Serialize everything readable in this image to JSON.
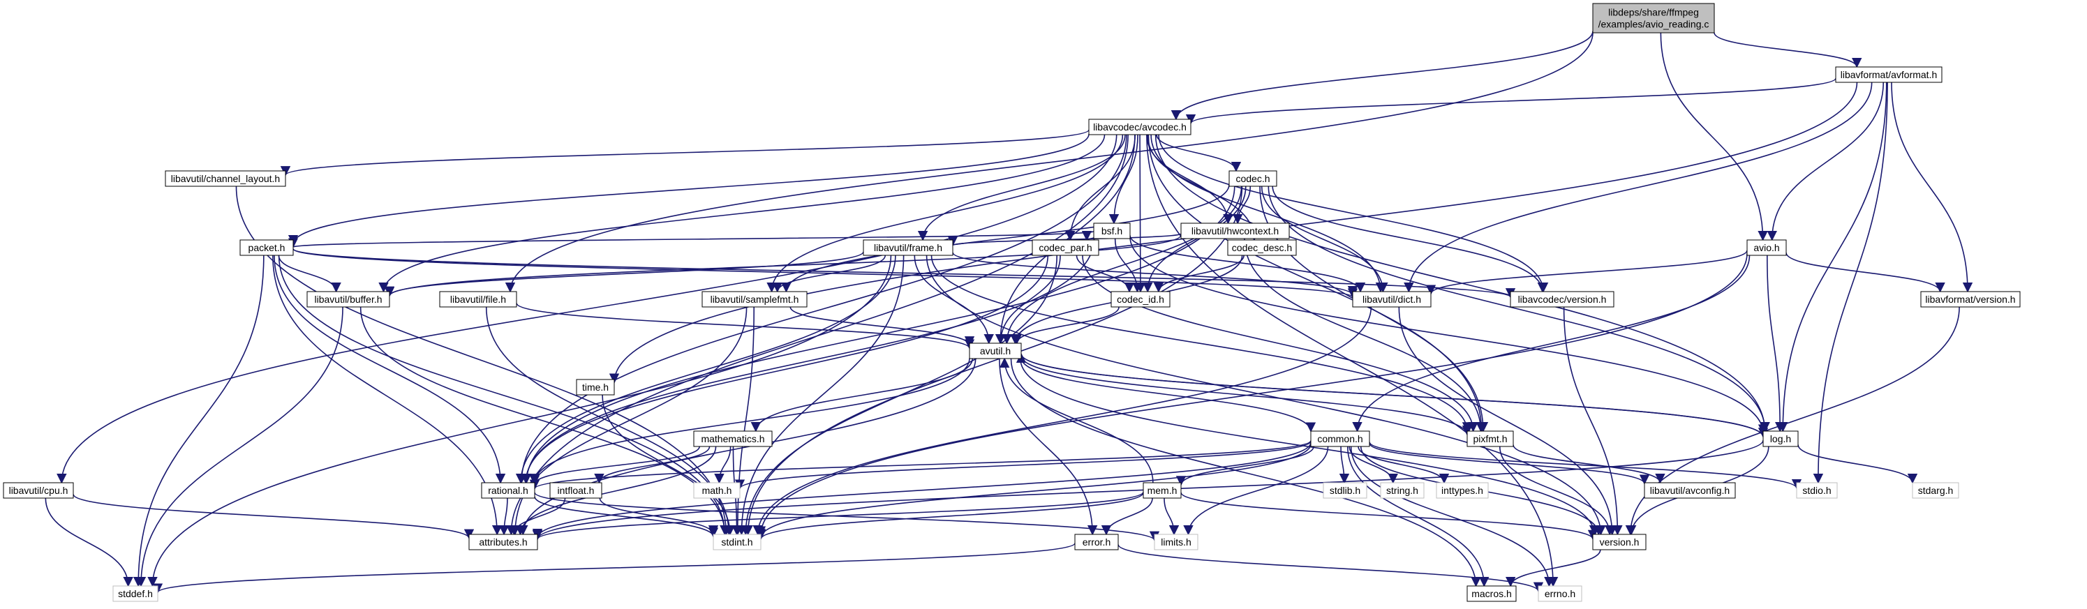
{
  "colors": {
    "edge": "#191970",
    "node_border": "#000000",
    "system_border": "#bfbfbf",
    "root_fill": "#bfbfbf",
    "node_fill": "#ffffff"
  },
  "nodes": [
    {
      "id": "root",
      "lines": [
        "libdeps/share/ffmpeg",
        "/examples/avio_reading.c"
      ],
      "kind": "root"
    },
    {
      "id": "avformat",
      "lines": [
        "libavformat/avformat.h"
      ],
      "kind": "file"
    },
    {
      "id": "avcodec",
      "lines": [
        "libavcodec/avcodec.h"
      ],
      "kind": "file"
    },
    {
      "id": "chlayout",
      "lines": [
        "libavutil/channel_layout.h"
      ],
      "kind": "file"
    },
    {
      "id": "codec",
      "lines": [
        "codec.h"
      ],
      "kind": "file"
    },
    {
      "id": "bsf",
      "lines": [
        "bsf.h"
      ],
      "kind": "file"
    },
    {
      "id": "hwcontext",
      "lines": [
        "libavutil/hwcontext.h"
      ],
      "kind": "file"
    },
    {
      "id": "packet",
      "lines": [
        "packet.h"
      ],
      "kind": "file"
    },
    {
      "id": "frame",
      "lines": [
        "libavutil/frame.h"
      ],
      "kind": "file"
    },
    {
      "id": "codecpar",
      "lines": [
        "codec_par.h"
      ],
      "kind": "file"
    },
    {
      "id": "codecdesc",
      "lines": [
        "codec_desc.h"
      ],
      "kind": "file"
    },
    {
      "id": "avio",
      "lines": [
        "avio.h"
      ],
      "kind": "file"
    },
    {
      "id": "buffer",
      "lines": [
        "libavutil/buffer.h"
      ],
      "kind": "file"
    },
    {
      "id": "file",
      "lines": [
        "libavutil/file.h"
      ],
      "kind": "file"
    },
    {
      "id": "samplefmt",
      "lines": [
        "libavutil/samplefmt.h"
      ],
      "kind": "file"
    },
    {
      "id": "codecid",
      "lines": [
        "codec_id.h"
      ],
      "kind": "file"
    },
    {
      "id": "dict",
      "lines": [
        "libavutil/dict.h"
      ],
      "kind": "file"
    },
    {
      "id": "avcversion",
      "lines": [
        "libavcodec/version.h"
      ],
      "kind": "file"
    },
    {
      "id": "avfversion",
      "lines": [
        "libavformat/version.h"
      ],
      "kind": "file"
    },
    {
      "id": "time",
      "lines": [
        "time.h"
      ],
      "kind": "file"
    },
    {
      "id": "avutil",
      "lines": [
        "avutil.h"
      ],
      "kind": "file"
    },
    {
      "id": "mathematics",
      "lines": [
        "mathematics.h"
      ],
      "kind": "file"
    },
    {
      "id": "common",
      "lines": [
        "common.h"
      ],
      "kind": "file"
    },
    {
      "id": "pixfmt",
      "lines": [
        "pixfmt.h"
      ],
      "kind": "file"
    },
    {
      "id": "log",
      "lines": [
        "log.h"
      ],
      "kind": "file"
    },
    {
      "id": "cpu",
      "lines": [
        "libavutil/cpu.h"
      ],
      "kind": "file"
    },
    {
      "id": "rational",
      "lines": [
        "rational.h"
      ],
      "kind": "file"
    },
    {
      "id": "intfloat",
      "lines": [
        "intfloat.h"
      ],
      "kind": "file"
    },
    {
      "id": "math",
      "lines": [
        "math.h"
      ],
      "kind": "system"
    },
    {
      "id": "mem",
      "lines": [
        "mem.h"
      ],
      "kind": "file"
    },
    {
      "id": "stdlib",
      "lines": [
        "stdlib.h"
      ],
      "kind": "system"
    },
    {
      "id": "string",
      "lines": [
        "string.h"
      ],
      "kind": "system"
    },
    {
      "id": "inttypes",
      "lines": [
        "inttypes.h"
      ],
      "kind": "system"
    },
    {
      "id": "avconfig",
      "lines": [
        "libavutil/avconfig.h"
      ],
      "kind": "file"
    },
    {
      "id": "stdio",
      "lines": [
        "stdio.h"
      ],
      "kind": "system"
    },
    {
      "id": "stdarg",
      "lines": [
        "stdarg.h"
      ],
      "kind": "system"
    },
    {
      "id": "attributes",
      "lines": [
        "attributes.h"
      ],
      "kind": "file"
    },
    {
      "id": "stdint",
      "lines": [
        "stdint.h"
      ],
      "kind": "system"
    },
    {
      "id": "limits",
      "lines": [
        "limits.h"
      ],
      "kind": "system"
    },
    {
      "id": "error",
      "lines": [
        "error.h"
      ],
      "kind": "file"
    },
    {
      "id": "version",
      "lines": [
        "version.h"
      ],
      "kind": "file"
    },
    {
      "id": "stddef",
      "lines": [
        "stddef.h"
      ],
      "kind": "system"
    },
    {
      "id": "macros",
      "lines": [
        "macros.h"
      ],
      "kind": "file"
    },
    {
      "id": "errno",
      "lines": [
        "errno.h"
      ],
      "kind": "system"
    }
  ],
  "edges": [
    [
      "root",
      "avformat"
    ],
    [
      "root",
      "avcodec"
    ],
    [
      "root",
      "avio"
    ],
    [
      "root",
      "file"
    ],
    [
      "avformat",
      "avcodec"
    ],
    [
      "avformat",
      "avio"
    ],
    [
      "avformat",
      "dict"
    ],
    [
      "avformat",
      "log"
    ],
    [
      "avformat",
      "avfversion"
    ],
    [
      "avformat",
      "time"
    ],
    [
      "avformat",
      "stdio"
    ],
    [
      "avcodec",
      "chlayout"
    ],
    [
      "avcodec",
      "codec"
    ],
    [
      "avcodec",
      "bsf"
    ],
    [
      "avcodec",
      "hwcontext"
    ],
    [
      "avcodec",
      "packet"
    ],
    [
      "avcodec",
      "frame"
    ],
    [
      "avcodec",
      "codecpar"
    ],
    [
      "avcodec",
      "codecdesc"
    ],
    [
      "avcodec",
      "buffer"
    ],
    [
      "avcodec",
      "samplefmt"
    ],
    [
      "avcodec",
      "codecid"
    ],
    [
      "avcodec",
      "dict"
    ],
    [
      "avcodec",
      "avcversion"
    ],
    [
      "avcodec",
      "avutil"
    ],
    [
      "avcodec",
      "rational"
    ],
    [
      "avcodec",
      "pixfmt"
    ],
    [
      "avcodec",
      "log"
    ],
    [
      "avcodec",
      "cpu"
    ],
    [
      "avcodec",
      "attributes"
    ],
    [
      "avcodec",
      "errno"
    ],
    [
      "chlayout",
      "stdint"
    ],
    [
      "codec",
      "hwcontext"
    ],
    [
      "codec",
      "codecid"
    ],
    [
      "codec",
      "avcversion"
    ],
    [
      "codec",
      "dict"
    ],
    [
      "codec",
      "samplefmt"
    ],
    [
      "codec",
      "avutil"
    ],
    [
      "codec",
      "rational"
    ],
    [
      "codec",
      "pixfmt"
    ],
    [
      "codec",
      "log"
    ],
    [
      "codec",
      "stdint"
    ],
    [
      "bsf",
      "packet"
    ],
    [
      "bsf",
      "codecpar"
    ],
    [
      "bsf",
      "codecid"
    ],
    [
      "bsf",
      "dict"
    ],
    [
      "bsf",
      "log"
    ],
    [
      "bsf",
      "rational"
    ],
    [
      "hwcontext",
      "buffer"
    ],
    [
      "hwcontext",
      "frame"
    ],
    [
      "hwcontext",
      "pixfmt"
    ],
    [
      "packet",
      "buffer"
    ],
    [
      "packet",
      "dict"
    ],
    [
      "packet",
      "avcversion"
    ],
    [
      "packet",
      "rational"
    ],
    [
      "packet",
      "attributes"
    ],
    [
      "packet",
      "stdint"
    ],
    [
      "packet",
      "stddef"
    ],
    [
      "frame",
      "buffer"
    ],
    [
      "frame",
      "samplefmt"
    ],
    [
      "frame",
      "dict"
    ],
    [
      "frame",
      "avutil"
    ],
    [
      "frame",
      "rational"
    ],
    [
      "frame",
      "pixfmt"
    ],
    [
      "frame",
      "version"
    ],
    [
      "frame",
      "stdint"
    ],
    [
      "frame",
      "stddef"
    ],
    [
      "codecpar",
      "codecid"
    ],
    [
      "codecpar",
      "avutil"
    ],
    [
      "codecpar",
      "rational"
    ],
    [
      "codecpar",
      "pixfmt"
    ],
    [
      "codecpar",
      "stdint"
    ],
    [
      "codecdesc",
      "codecid"
    ],
    [
      "codecdesc",
      "avutil"
    ],
    [
      "avio",
      "dict"
    ],
    [
      "avio",
      "log"
    ],
    [
      "avio",
      "avfversion"
    ],
    [
      "avio",
      "common"
    ],
    [
      "avio",
      "stdint"
    ],
    [
      "buffer",
      "stdint"
    ],
    [
      "buffer",
      "stddef"
    ],
    [
      "file",
      "avutil"
    ],
    [
      "file",
      "stdint"
    ],
    [
      "samplefmt",
      "avutil"
    ],
    [
      "samplefmt",
      "attributes"
    ],
    [
      "samplefmt",
      "stdint"
    ],
    [
      "codecid",
      "avutil"
    ],
    [
      "dict",
      "version"
    ],
    [
      "dict",
      "stdint"
    ],
    [
      "avcversion",
      "version"
    ],
    [
      "avfversion",
      "version"
    ],
    [
      "time",
      "stdint"
    ],
    [
      "avutil",
      "mathematics"
    ],
    [
      "avutil",
      "common"
    ],
    [
      "avutil",
      "pixfmt"
    ],
    [
      "avutil",
      "log"
    ],
    [
      "avutil",
      "rational"
    ],
    [
      "avutil",
      "error"
    ],
    [
      "avutil",
      "macros"
    ],
    [
      "avutil",
      "version"
    ],
    [
      "avutil",
      "attributes"
    ],
    [
      "mathematics",
      "rational"
    ],
    [
      "mathematics",
      "intfloat"
    ],
    [
      "mathematics",
      "math"
    ],
    [
      "mathematics",
      "attributes"
    ],
    [
      "mathematics",
      "stdint"
    ],
    [
      "common",
      "avconfig"
    ],
    [
      "common",
      "mem"
    ],
    [
      "common",
      "math"
    ],
    [
      "common",
      "stdlib"
    ],
    [
      "common",
      "string"
    ],
    [
      "common",
      "inttypes"
    ],
    [
      "common",
      "stdio"
    ],
    [
      "common",
      "limits"
    ],
    [
      "common",
      "attributes"
    ],
    [
      "common",
      "stdint"
    ],
    [
      "common",
      "errno"
    ],
    [
      "common",
      "macros"
    ],
    [
      "common",
      "version"
    ],
    [
      "common",
      "rational"
    ],
    [
      "pixfmt",
      "avconfig"
    ],
    [
      "pixfmt",
      "version"
    ],
    [
      "log",
      "avutil"
    ],
    [
      "log",
      "stdarg"
    ],
    [
      "log",
      "version"
    ],
    [
      "log",
      "attributes"
    ],
    [
      "cpu",
      "attributes"
    ],
    [
      "cpu",
      "stddef"
    ],
    [
      "rational",
      "attributes"
    ],
    [
      "rational",
      "stdint"
    ],
    [
      "rational",
      "limits"
    ],
    [
      "intfloat",
      "attributes"
    ],
    [
      "intfloat",
      "stdint"
    ],
    [
      "mem",
      "avutil"
    ],
    [
      "mem",
      "error"
    ],
    [
      "mem",
      "attributes"
    ],
    [
      "mem",
      "stdint"
    ],
    [
      "mem",
      "limits"
    ],
    [
      "mem",
      "version"
    ],
    [
      "error",
      "errno"
    ],
    [
      "error",
      "stddef"
    ],
    [
      "version",
      "macros"
    ]
  ]
}
